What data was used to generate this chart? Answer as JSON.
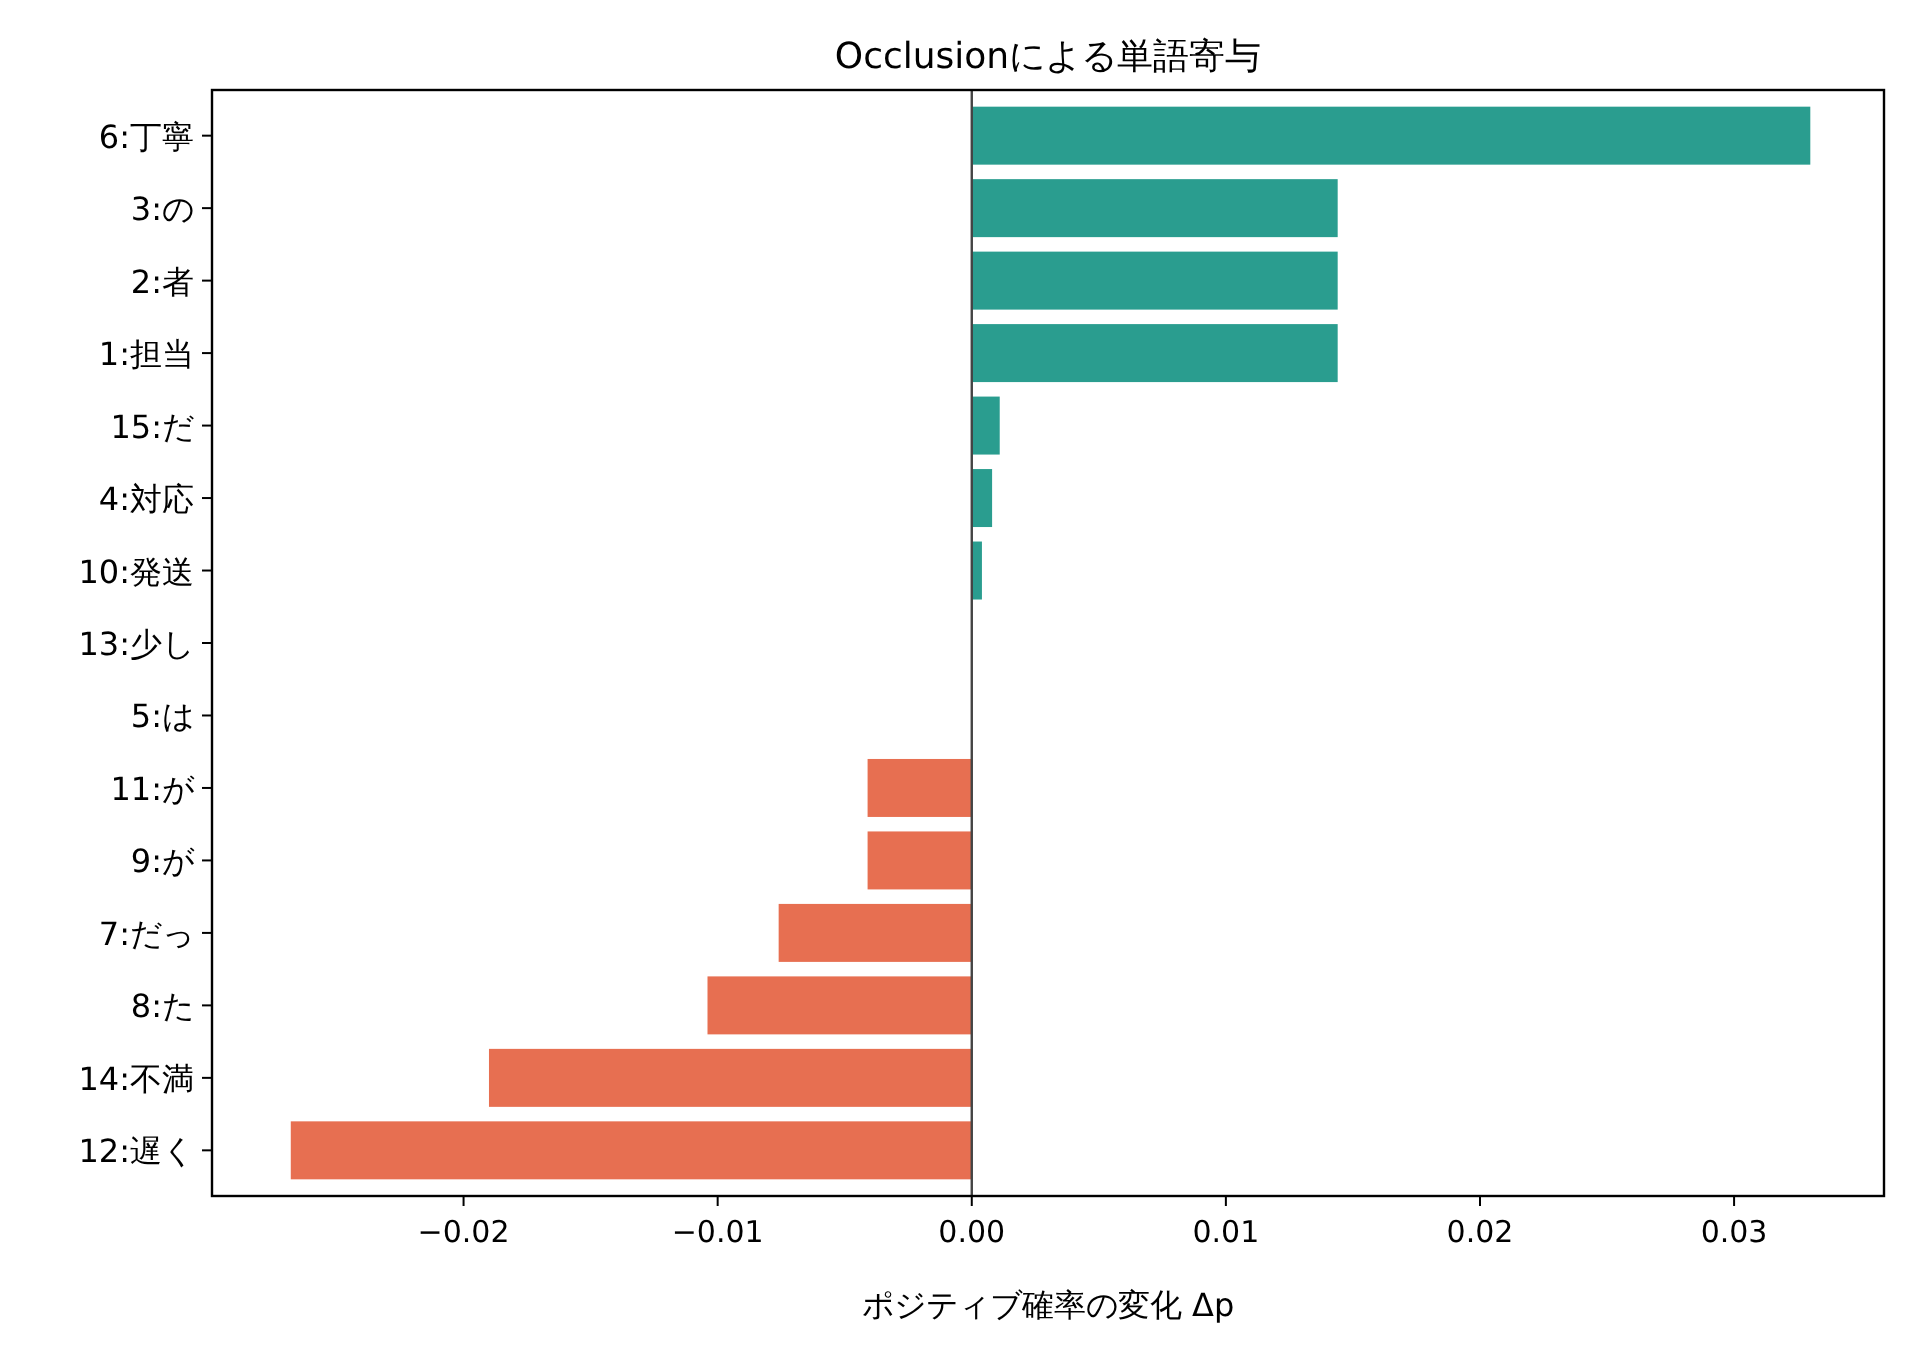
{
  "chart_data": {
    "type": "bar",
    "orientation": "horizontal",
    "title": "Occlusionによる単語寄与",
    "xlabel": "ポジティブ確率の変化 Δp",
    "categories": [
      "6:丁寧",
      "3:の",
      "2:者",
      "1:担当",
      "15:だ",
      "4:対応",
      "10:発送",
      "13:少し",
      "5:は",
      "11:が",
      "9:が",
      "7:だっ",
      "8:た",
      "14:不満",
      "12:遅く"
    ],
    "values": [
      0.033,
      0.0144,
      0.0144,
      0.0144,
      0.0011,
      0.0008,
      0.0004,
      0,
      0,
      -0.0041,
      -0.0041,
      -0.0076,
      -0.0104,
      -0.019,
      -0.0268
    ],
    "colors": [
      "#2a9d8f",
      "#2a9d8f",
      "#2a9d8f",
      "#2a9d8f",
      "#2a9d8f",
      "#2a9d8f",
      "#2a9d8f",
      "#2a9d8f",
      "#2a9d8f",
      "#e76f51",
      "#e76f51",
      "#e76f51",
      "#e76f51",
      "#e76f51",
      "#e76f51"
    ],
    "xlim": [
      -0.0299,
      0.0359
    ],
    "xticks": [
      {
        "value": -0.02,
        "label": "−0.02"
      },
      {
        "value": -0.01,
        "label": "−0.01"
      },
      {
        "value": 0,
        "label": "0.00"
      },
      {
        "value": 0.01,
        "label": "0.01"
      },
      {
        "value": 0.02,
        "label": "0.02"
      },
      {
        "value": 0.03,
        "label": "0.03"
      }
    ],
    "ref_lines": [
      {
        "axis": "x",
        "value": 0,
        "color": "#444444"
      }
    ],
    "grid": false
  }
}
